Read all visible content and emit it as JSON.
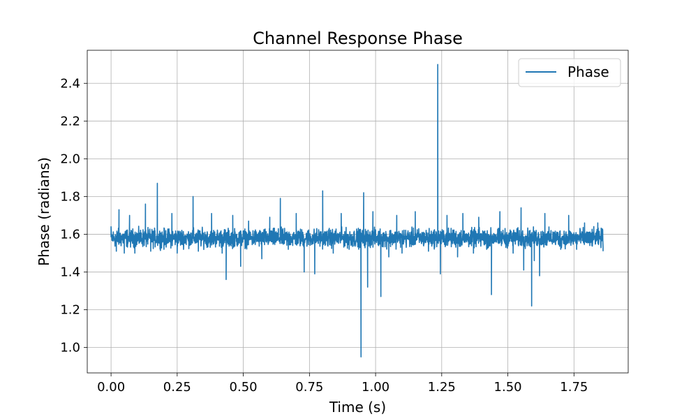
{
  "chart_data": {
    "type": "line",
    "title": "Channel Response Phase",
    "xlabel": "Time (s)",
    "ylabel": "Phase (radians)",
    "xlim": [
      -0.09,
      1.955
    ],
    "ylim": [
      0.865,
      2.575
    ],
    "x_ticks": [
      0.0,
      0.25,
      0.5,
      0.75,
      1.0,
      1.25,
      1.5,
      1.75
    ],
    "x_tick_labels": [
      "0.00",
      "0.25",
      "0.50",
      "0.75",
      "1.00",
      "1.25",
      "1.50",
      "1.75"
    ],
    "y_ticks": [
      1.0,
      1.2,
      1.4,
      1.6,
      1.8,
      2.0,
      2.2,
      2.4
    ],
    "y_tick_labels": [
      "1.0",
      "1.2",
      "1.4",
      "1.6",
      "1.8",
      "2.0",
      "2.2",
      "2.4"
    ],
    "grid": true,
    "legend_position": "top-right",
    "series": [
      {
        "name": "Phase",
        "color": "#1f77b4",
        "baseline": 1.58,
        "noise_amplitude": 0.05,
        "x_range": [
          0.0,
          1.86
        ],
        "points": [
          [
            0.0,
            1.64
          ],
          [
            0.02,
            1.51
          ],
          [
            0.03,
            1.73
          ],
          [
            0.05,
            1.5
          ],
          [
            0.07,
            1.7
          ],
          [
            0.09,
            1.5
          ],
          [
            0.13,
            1.76
          ],
          [
            0.15,
            1.51
          ],
          [
            0.175,
            1.87
          ],
          [
            0.2,
            1.52
          ],
          [
            0.23,
            1.71
          ],
          [
            0.25,
            1.5
          ],
          [
            0.31,
            1.8
          ],
          [
            0.33,
            1.51
          ],
          [
            0.38,
            1.71
          ],
          [
            0.42,
            1.5
          ],
          [
            0.435,
            1.36
          ],
          [
            0.44,
            1.6
          ],
          [
            0.46,
            1.7
          ],
          [
            0.49,
            1.43
          ],
          [
            0.52,
            1.67
          ],
          [
            0.57,
            1.47
          ],
          [
            0.6,
            1.69
          ],
          [
            0.64,
            1.79
          ],
          [
            0.67,
            1.52
          ],
          [
            0.7,
            1.71
          ],
          [
            0.725,
            1.6
          ],
          [
            0.73,
            1.4
          ],
          [
            0.77,
            1.39
          ],
          [
            0.8,
            1.83
          ],
          [
            0.84,
            1.5
          ],
          [
            0.87,
            1.71
          ],
          [
            0.9,
            1.52
          ],
          [
            0.945,
            0.95
          ],
          [
            0.95,
            1.6
          ],
          [
            0.955,
            1.82
          ],
          [
            0.97,
            1.32
          ],
          [
            0.99,
            1.72
          ],
          [
            1.02,
            1.27
          ],
          [
            1.03,
            1.6
          ],
          [
            1.05,
            1.48
          ],
          [
            1.08,
            1.7
          ],
          [
            1.1,
            1.5
          ],
          [
            1.15,
            1.72
          ],
          [
            1.2,
            1.51
          ],
          [
            1.235,
            2.5
          ],
          [
            1.245,
            1.39
          ],
          [
            1.27,
            1.7
          ],
          [
            1.31,
            1.48
          ],
          [
            1.33,
            1.71
          ],
          [
            1.37,
            1.5
          ],
          [
            1.39,
            1.69
          ],
          [
            1.42,
            1.52
          ],
          [
            1.438,
            1.28
          ],
          [
            1.45,
            1.6
          ],
          [
            1.47,
            1.72
          ],
          [
            1.52,
            1.5
          ],
          [
            1.55,
            1.74
          ],
          [
            1.56,
            1.41
          ],
          [
            1.59,
            1.22
          ],
          [
            1.6,
            1.46
          ],
          [
            1.62,
            1.38
          ],
          [
            1.64,
            1.71
          ],
          [
            1.7,
            1.52
          ],
          [
            1.73,
            1.7
          ],
          [
            1.76,
            1.52
          ],
          [
            1.79,
            1.66
          ],
          [
            1.81,
            1.54
          ],
          [
            1.84,
            1.66
          ],
          [
            1.86,
            1.51
          ]
        ]
      }
    ]
  }
}
